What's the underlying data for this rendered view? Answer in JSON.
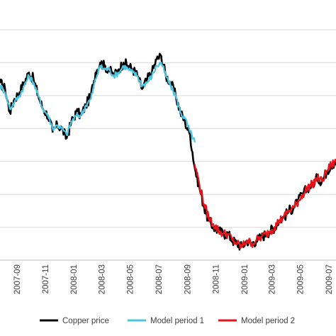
{
  "colors": {
    "copper": "#000000",
    "model1": "#4ec4e0",
    "model2": "#e8141b",
    "grid": "#d9d9d9",
    "axis": "#bfbfbf",
    "text": "#404040"
  },
  "chart_data": {
    "type": "line",
    "title": "",
    "xlabel": "",
    "ylabel": "",
    "x_type": "date",
    "xlim": [
      "2007-07-25",
      "2009-07-15"
    ],
    "ticks": [
      "2007-09",
      "2007-11",
      "2008-01",
      "2008-03",
      "2008-05",
      "2008-07",
      "2008-09",
      "2008-11",
      "2009-01",
      "2009-03",
      "2009-05",
      "2009-07"
    ],
    "ylim": [
      0,
      7
    ],
    "y_grid_values": [
      1,
      2,
      3,
      4,
      5,
      6,
      7
    ],
    "y_tick_labels_visible": false,
    "grid": true,
    "legend_position": "bottom",
    "series": [
      {
        "name": "Copper price",
        "color": "#000000",
        "x": [
          "2007-07-25",
          "2007-08-05",
          "2007-08-15",
          "2007-08-25",
          "2007-09-05",
          "2007-09-15",
          "2007-09-25",
          "2007-10-05",
          "2007-10-15",
          "2007-10-25",
          "2007-11-05",
          "2007-11-15",
          "2007-11-25",
          "2007-12-05",
          "2007-12-15",
          "2007-12-25",
          "2008-01-05",
          "2008-01-15",
          "2008-01-25",
          "2008-02-05",
          "2008-02-15",
          "2008-02-25",
          "2008-03-05",
          "2008-03-15",
          "2008-03-25",
          "2008-04-05",
          "2008-04-15",
          "2008-04-25",
          "2008-05-05",
          "2008-05-15",
          "2008-05-25",
          "2008-06-05",
          "2008-06-15",
          "2008-06-25",
          "2008-07-05",
          "2008-07-15",
          "2008-07-25",
          "2008-08-05",
          "2008-08-15",
          "2008-08-25",
          "2008-09-05",
          "2008-09-15",
          "2008-09-25",
          "2008-10-05",
          "2008-10-15",
          "2008-10-25",
          "2008-11-05",
          "2008-11-15",
          "2008-11-25",
          "2008-12-05",
          "2008-12-15",
          "2008-12-25",
          "2009-01-05",
          "2009-01-15",
          "2009-01-25",
          "2009-02-05",
          "2009-02-15",
          "2009-02-25",
          "2009-03-05",
          "2009-03-15",
          "2009-03-25",
          "2009-04-05",
          "2009-04-15",
          "2009-04-25",
          "2009-05-05",
          "2009-05-15",
          "2009-05-25",
          "2009-06-05",
          "2009-06-15",
          "2009-06-25",
          "2009-07-05",
          "2009-07-15"
        ],
        "y": [
          5.4,
          5.2,
          4.5,
          4.9,
          5.1,
          5.4,
          5.7,
          5.5,
          5.0,
          4.6,
          4.4,
          3.9,
          4.1,
          4.0,
          3.7,
          4.2,
          4.5,
          4.4,
          4.7,
          5.0,
          5.7,
          6.0,
          5.9,
          5.8,
          5.6,
          5.8,
          6.0,
          5.9,
          5.8,
          5.6,
          5.2,
          5.5,
          5.7,
          6.1,
          6.2,
          5.6,
          5.4,
          5.0,
          4.5,
          4.2,
          3.8,
          2.8,
          2.2,
          1.6,
          1.2,
          1.0,
          0.9,
          0.8,
          0.8,
          0.6,
          0.5,
          0.4,
          0.6,
          0.5,
          0.6,
          0.7,
          0.8,
          0.9,
          1.0,
          1.2,
          1.3,
          1.5,
          1.6,
          1.8,
          2.0,
          2.2,
          2.3,
          2.5,
          2.4,
          2.7,
          2.9,
          3.0
        ]
      },
      {
        "name": "Model period 1",
        "color": "#4ec4e0",
        "x": [
          "2007-07-25",
          "2007-08-05",
          "2007-08-15",
          "2007-08-25",
          "2007-09-05",
          "2007-09-15",
          "2007-09-25",
          "2007-10-05",
          "2007-10-15",
          "2007-10-25",
          "2007-11-05",
          "2007-11-15",
          "2007-11-25",
          "2007-12-05",
          "2007-12-15",
          "2007-12-25",
          "2008-01-05",
          "2008-01-15",
          "2008-01-25",
          "2008-02-05",
          "2008-02-15",
          "2008-02-25",
          "2008-03-05",
          "2008-03-15",
          "2008-03-25",
          "2008-04-05",
          "2008-04-15",
          "2008-04-25",
          "2008-05-05",
          "2008-05-15",
          "2008-05-25",
          "2008-06-05",
          "2008-06-15",
          "2008-06-25",
          "2008-07-05",
          "2008-07-15",
          "2008-07-25",
          "2008-08-05",
          "2008-08-15",
          "2008-08-25",
          "2008-09-05",
          "2008-09-15"
        ],
        "y": [
          5.3,
          5.1,
          4.6,
          4.8,
          5.0,
          5.3,
          5.6,
          5.4,
          5.0,
          4.6,
          4.4,
          4.0,
          4.1,
          4.0,
          3.8,
          4.2,
          4.4,
          4.4,
          4.7,
          4.9,
          5.5,
          5.9,
          5.8,
          5.8,
          5.6,
          5.7,
          5.9,
          5.8,
          5.7,
          5.6,
          5.3,
          5.4,
          5.6,
          5.9,
          6.0,
          5.6,
          5.3,
          5.0,
          4.5,
          4.3,
          3.9,
          3.6
        ]
      },
      {
        "name": "Model period 2",
        "color": "#e8141b",
        "x": [
          "2008-09-15",
          "2008-09-25",
          "2008-10-05",
          "2008-10-15",
          "2008-10-25",
          "2008-11-05",
          "2008-11-15",
          "2008-11-25",
          "2008-12-05",
          "2008-12-15",
          "2008-12-25",
          "2009-01-05",
          "2009-01-15",
          "2009-01-25",
          "2009-02-05",
          "2009-02-15",
          "2009-02-25",
          "2009-03-05",
          "2009-03-15",
          "2009-03-25",
          "2009-04-05",
          "2009-04-15",
          "2009-04-25",
          "2009-05-05",
          "2009-05-15",
          "2009-05-25",
          "2009-06-05",
          "2009-06-15",
          "2009-06-25",
          "2009-07-05",
          "2009-07-15"
        ],
        "y": [
          2.9,
          2.3,
          1.7,
          1.3,
          1.1,
          0.9,
          0.8,
          0.8,
          0.6,
          0.5,
          0.4,
          0.6,
          0.5,
          0.6,
          0.7,
          0.8,
          0.9,
          1.0,
          1.2,
          1.3,
          1.5,
          1.6,
          1.8,
          2.0,
          2.2,
          2.3,
          2.5,
          2.4,
          2.7,
          2.9,
          3.0
        ]
      }
    ]
  }
}
